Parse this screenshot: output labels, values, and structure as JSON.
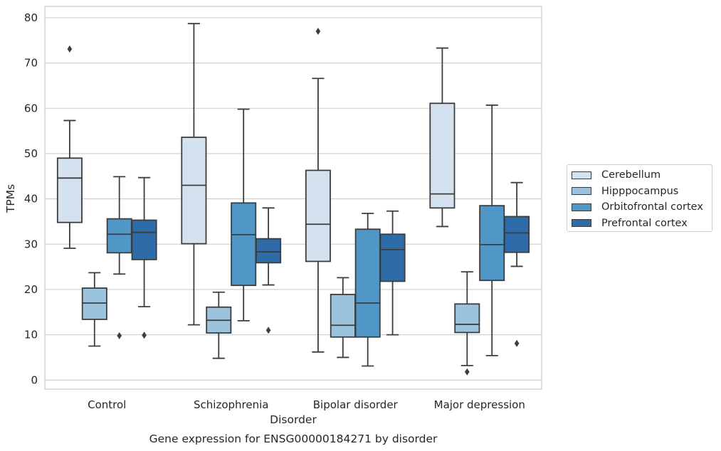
{
  "chart_data": {
    "type": "box",
    "title": "Gene expression for ENSG00000184271 by disorder",
    "xlabel": "Disorder",
    "ylabel": "TPMs",
    "ylim": [
      -2,
      82.5
    ],
    "yticks": [
      0,
      10,
      20,
      30,
      40,
      50,
      60,
      70,
      80
    ],
    "grid": "horizontal",
    "legend_position": "right",
    "categories": [
      "Control",
      "Schizophrenia",
      "Bipolar disorder",
      "Major depression"
    ],
    "series": [
      {
        "name": "Cerebellum",
        "color": "#d4e2ef",
        "boxes": [
          {
            "whisker_low": 29.1,
            "q1": 34.8,
            "median": 44.6,
            "q3": 49.0,
            "whisker_high": 57.3,
            "outliers": [
              73.1
            ]
          },
          {
            "whisker_low": 12.2,
            "q1": 30.1,
            "median": 43.0,
            "q3": 53.6,
            "whisker_high": 78.7,
            "outliers": []
          },
          {
            "whisker_low": 6.2,
            "q1": 26.2,
            "median": 34.4,
            "q3": 46.3,
            "whisker_high": 66.6,
            "outliers": [
              77.0
            ]
          },
          {
            "whisker_low": 33.9,
            "q1": 38.0,
            "median": 41.1,
            "q3": 61.1,
            "whisker_high": 73.3,
            "outliers": []
          }
        ]
      },
      {
        "name": "Hipppocampus",
        "color": "#9cc3dd",
        "boxes": [
          {
            "whisker_low": 7.5,
            "q1": 13.4,
            "median": 17.0,
            "q3": 20.3,
            "whisker_high": 23.7,
            "outliers": []
          },
          {
            "whisker_low": 4.8,
            "q1": 10.4,
            "median": 13.2,
            "q3": 16.1,
            "whisker_high": 19.4,
            "outliers": []
          },
          {
            "whisker_low": 5.0,
            "q1": 9.5,
            "median": 12.1,
            "q3": 18.9,
            "whisker_high": 22.6,
            "outliers": []
          },
          {
            "whisker_low": 3.2,
            "q1": 10.5,
            "median": 12.3,
            "q3": 16.8,
            "whisker_high": 23.9,
            "outliers": [
              1.8
            ]
          }
        ]
      },
      {
        "name": "Orbitofrontal cortex",
        "color": "#5096c6",
        "boxes": [
          {
            "whisker_low": 23.4,
            "q1": 28.1,
            "median": 32.2,
            "q3": 35.6,
            "whisker_high": 44.9,
            "outliers": [
              9.8
            ]
          },
          {
            "whisker_low": 13.1,
            "q1": 20.9,
            "median": 32.1,
            "q3": 39.1,
            "whisker_high": 59.8,
            "outliers": []
          },
          {
            "whisker_low": 3.1,
            "q1": 9.5,
            "median": 17.0,
            "q3": 33.3,
            "whisker_high": 36.8,
            "outliers": []
          },
          {
            "whisker_low": 5.4,
            "q1": 22.0,
            "median": 29.9,
            "q3": 38.5,
            "whisker_high": 60.7,
            "outliers": []
          }
        ]
      },
      {
        "name": "Prefrontal cortex",
        "color": "#2d6ca8",
        "boxes": [
          {
            "whisker_low": 16.2,
            "q1": 26.6,
            "median": 32.6,
            "q3": 35.3,
            "whisker_high": 44.7,
            "outliers": [
              9.9
            ]
          },
          {
            "whisker_low": 21.0,
            "q1": 25.9,
            "median": 28.3,
            "q3": 31.2,
            "whisker_high": 38.0,
            "outliers": [
              11.0
            ]
          },
          {
            "whisker_low": 10.0,
            "q1": 21.8,
            "median": 28.8,
            "q3": 32.2,
            "whisker_high": 37.3,
            "outliers": []
          },
          {
            "whisker_low": 25.1,
            "q1": 28.2,
            "median": 32.5,
            "q3": 36.1,
            "whisker_high": 43.6,
            "outliers": [
              8.1
            ]
          }
        ]
      }
    ]
  }
}
